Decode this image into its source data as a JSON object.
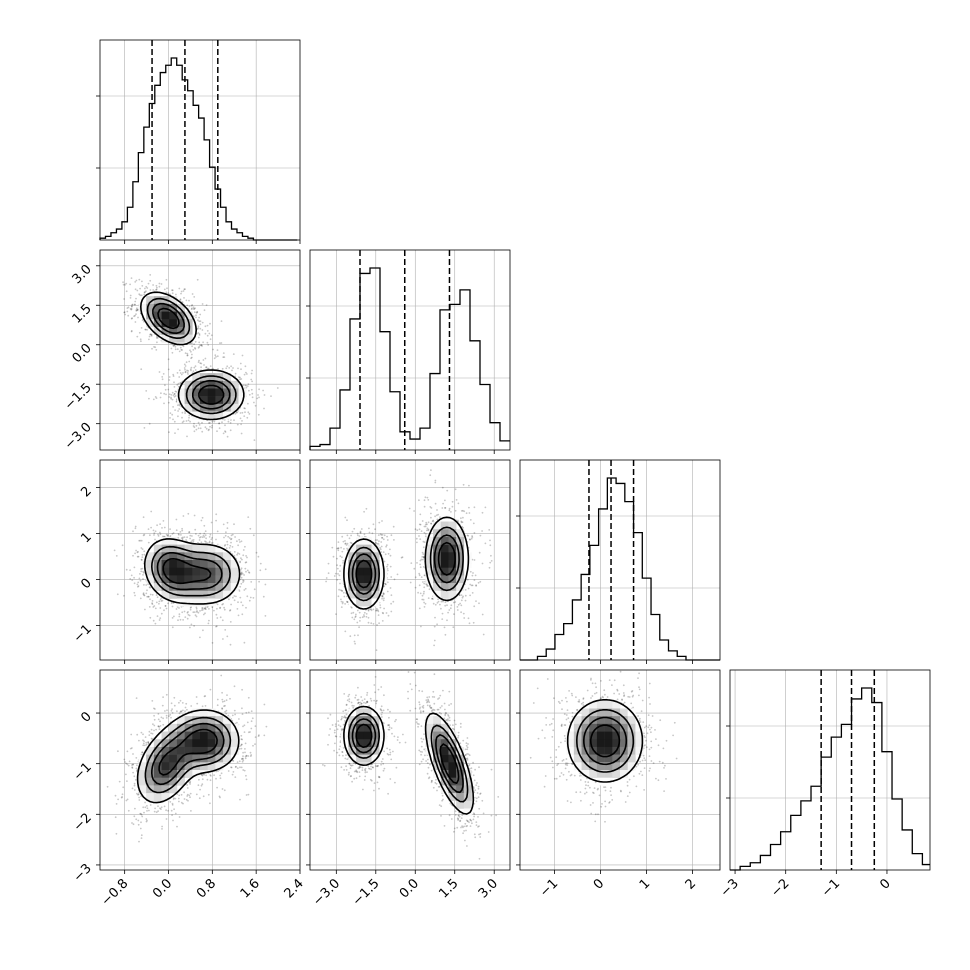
{
  "chart_data": {
    "type": "scatter",
    "title": "",
    "variables": [
      {
        "label": "",
        "range": [
          -1.25,
          2.4
        ],
        "ticks": [
          -0.8,
          0.0,
          0.8,
          1.6,
          2.4
        ],
        "tick_labels": [
          "−0.8",
          "0.0",
          "0.8",
          "1.6",
          "2.4"
        ],
        "quantiles": [
          -0.3,
          0.3,
          0.9
        ]
      },
      {
        "label": "",
        "range": [
          -4.0,
          3.6
        ],
        "ticks": [
          -3.0,
          -1.5,
          0.0,
          1.5,
          3.0
        ],
        "tick_labels": [
          "−3.0",
          "−1.5",
          "0.0",
          "1.5",
          "3.0"
        ],
        "quantiles": [
          -2.1,
          -0.4,
          1.3
        ]
      },
      {
        "label": "",
        "range": [
          -1.75,
          2.6
        ],
        "ticks": [
          -1,
          0,
          1,
          2
        ],
        "tick_labels": [
          "−1",
          "0",
          "1",
          "2"
        ],
        "quantiles": [
          -0.25,
          0.23,
          0.72
        ]
      },
      {
        "label": "",
        "range": [
          -3.1,
          0.85
        ],
        "ticks": [
          -3,
          -2,
          -1,
          0
        ],
        "tick_labels": [
          "−3",
          "−2",
          "−1",
          "0"
        ],
        "quantiles": [
          -1.3,
          -0.7,
          -0.25
        ]
      }
    ],
    "histograms": [
      {
        "variable": 0,
        "bin_start": -1.25,
        "bin_width": 0.1,
        "counts": [
          1,
          2,
          4,
          6,
          10,
          18,
          32,
          48,
          62,
          75,
          85,
          92,
          96,
          100,
          96,
          88,
          82,
          74,
          67,
          55,
          40,
          28,
          18,
          10,
          6,
          4,
          2,
          1,
          0,
          0,
          0,
          0,
          0,
          0,
          0,
          0
        ]
      },
      {
        "variable": 1,
        "bin_start": -4.0,
        "bin_width": 0.38,
        "counts": [
          2,
          3,
          12,
          33,
          72,
          97,
          100,
          65,
          32,
          10,
          6,
          12,
          42,
          77,
          80,
          88,
          60,
          36,
          15,
          5
        ]
      },
      {
        "variable": 2,
        "bin_start": -1.75,
        "bin_width": 0.19,
        "counts": [
          0,
          0,
          2,
          6,
          14,
          20,
          33,
          47,
          63,
          83,
          100,
          97,
          87,
          70,
          45,
          25,
          11,
          5,
          2,
          0,
          0,
          0,
          0
        ]
      },
      {
        "variable": 3,
        "bin_start": -3.1,
        "bin_width": 0.2,
        "counts": [
          0,
          2,
          4,
          8,
          14,
          21,
          30,
          38,
          46,
          62,
          73,
          80,
          94,
          100,
          92,
          65,
          39,
          22,
          9,
          3
        ]
      }
    ],
    "pairs": [
      {
        "x": 0,
        "y": 1,
        "clusters": [
          {
            "cx": 0.0,
            "cy": 1.0,
            "sx": 0.28,
            "sy": 0.55,
            "rho": -0.45,
            "weight": 1.0
          },
          {
            "cx": 0.78,
            "cy": -1.9,
            "sx": 0.33,
            "sy": 0.52,
            "rho": 0.0,
            "weight": 1.0
          }
        ]
      },
      {
        "x": 0,
        "y": 2,
        "clusters": [
          {
            "cx": 0.05,
            "cy": 0.22,
            "sx": 0.28,
            "sy": 0.38,
            "rho": -0.15,
            "weight": 1.0
          },
          {
            "cx": 0.72,
            "cy": 0.12,
            "sx": 0.35,
            "sy": 0.38,
            "rho": 0.0,
            "weight": 0.9
          }
        ]
      },
      {
        "x": 0,
        "y": 3,
        "clusters": [
          {
            "cx": -0.05,
            "cy": -1.05,
            "sx": 0.3,
            "sy": 0.42,
            "rho": 0.35,
            "weight": 0.9
          },
          {
            "cx": 0.68,
            "cy": -0.55,
            "sx": 0.34,
            "sy": 0.34,
            "rho": 0.0,
            "weight": 1.0
          }
        ]
      },
      {
        "x": 1,
        "y": 2,
        "clusters": [
          {
            "cx": -1.95,
            "cy": 0.12,
            "sx": 0.42,
            "sy": 0.42,
            "rho": 0.0,
            "weight": 1.0
          },
          {
            "cx": 1.2,
            "cy": 0.45,
            "sx": 0.45,
            "sy": 0.5,
            "rho": 0.0,
            "weight": 1.0
          }
        ]
      },
      {
        "x": 1,
        "y": 3,
        "clusters": [
          {
            "cx": -1.95,
            "cy": -0.45,
            "sx": 0.42,
            "sy": 0.32,
            "rho": 0.0,
            "weight": 1.0
          },
          {
            "cx": 1.3,
            "cy": -1.0,
            "sx": 0.5,
            "sy": 0.55,
            "rho": -0.7,
            "weight": 1.0
          }
        ]
      },
      {
        "x": 2,
        "y": 3,
        "clusters": [
          {
            "cx": 0.1,
            "cy": -0.55,
            "sx": 0.45,
            "sy": 0.45,
            "rho": 0.0,
            "weight": 1.0
          }
        ]
      }
    ],
    "grid": true,
    "contour_levels": 4,
    "quantile_line_style": "dashed",
    "colors": {
      "line": "#000000",
      "grid": "#b0b0b0",
      "density_max": "#000000",
      "background": "#ffffff"
    }
  }
}
